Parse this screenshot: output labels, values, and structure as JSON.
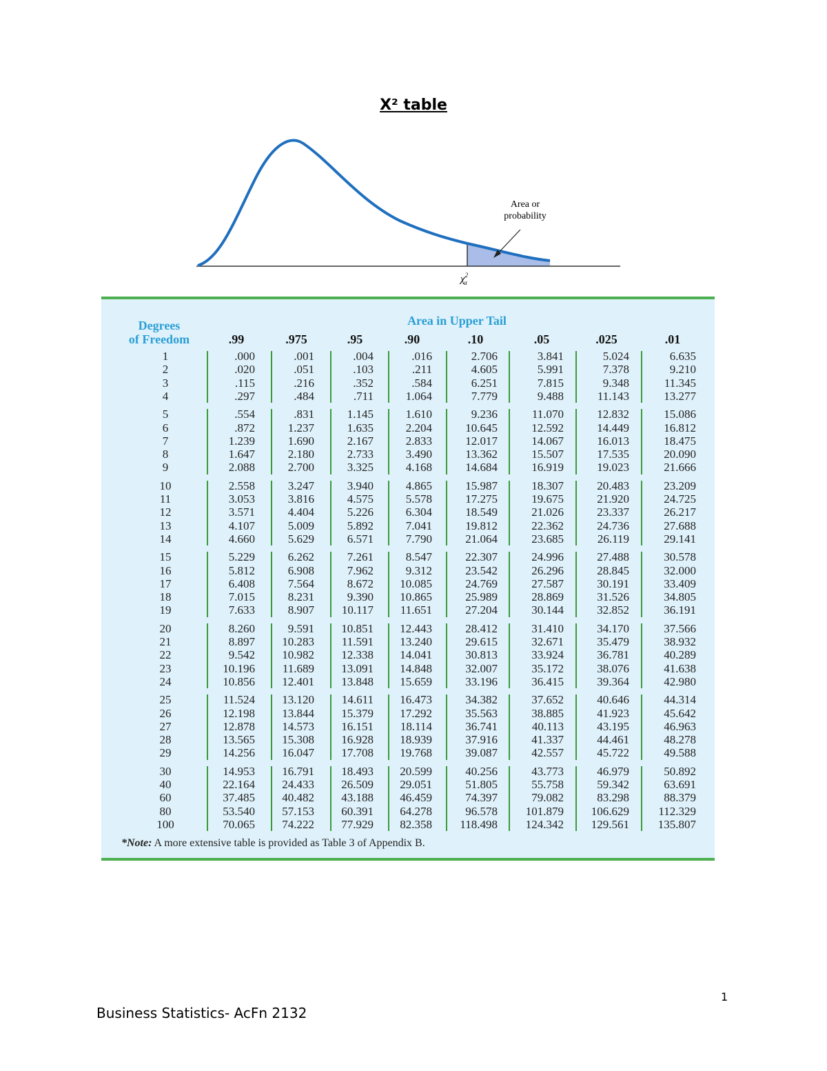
{
  "title": "X² table",
  "figure": {
    "area_label": [
      "Area or",
      "probability"
    ],
    "x_label": {
      "symbol": "χ",
      "sup": "2",
      "sub": "α"
    }
  },
  "table": {
    "header_left": [
      "Degrees",
      "of Freedom"
    ],
    "header_top": "Area in Upper Tail",
    "columns": [
      ".99",
      ".975",
      ".95",
      ".90",
      ".10",
      ".05",
      ".025",
      ".01"
    ],
    "groups": [
      [
        [
          "1",
          ".000",
          ".001",
          ".004",
          ".016",
          "2.706",
          "3.841",
          "5.024",
          "6.635"
        ],
        [
          "2",
          ".020",
          ".051",
          ".103",
          ".211",
          "4.605",
          "5.991",
          "7.378",
          "9.210"
        ],
        [
          "3",
          ".115",
          ".216",
          ".352",
          ".584",
          "6.251",
          "7.815",
          "9.348",
          "11.345"
        ],
        [
          "4",
          ".297",
          ".484",
          ".711",
          "1.064",
          "7.779",
          "9.488",
          "11.143",
          "13.277"
        ]
      ],
      [
        [
          "5",
          ".554",
          ".831",
          "1.145",
          "1.610",
          "9.236",
          "11.070",
          "12.832",
          "15.086"
        ],
        [
          "6",
          ".872",
          "1.237",
          "1.635",
          "2.204",
          "10.645",
          "12.592",
          "14.449",
          "16.812"
        ],
        [
          "7",
          "1.239",
          "1.690",
          "2.167",
          "2.833",
          "12.017",
          "14.067",
          "16.013",
          "18.475"
        ],
        [
          "8",
          "1.647",
          "2.180",
          "2.733",
          "3.490",
          "13.362",
          "15.507",
          "17.535",
          "20.090"
        ],
        [
          "9",
          "2.088",
          "2.700",
          "3.325",
          "4.168",
          "14.684",
          "16.919",
          "19.023",
          "21.666"
        ]
      ],
      [
        [
          "10",
          "2.558",
          "3.247",
          "3.940",
          "4.865",
          "15.987",
          "18.307",
          "20.483",
          "23.209"
        ],
        [
          "11",
          "3.053",
          "3.816",
          "4.575",
          "5.578",
          "17.275",
          "19.675",
          "21.920",
          "24.725"
        ],
        [
          "12",
          "3.571",
          "4.404",
          "5.226",
          "6.304",
          "18.549",
          "21.026",
          "23.337",
          "26.217"
        ],
        [
          "13",
          "4.107",
          "5.009",
          "5.892",
          "7.041",
          "19.812",
          "22.362",
          "24.736",
          "27.688"
        ],
        [
          "14",
          "4.660",
          "5.629",
          "6.571",
          "7.790",
          "21.064",
          "23.685",
          "26.119",
          "29.141"
        ]
      ],
      [
        [
          "15",
          "5.229",
          "6.262",
          "7.261",
          "8.547",
          "22.307",
          "24.996",
          "27.488",
          "30.578"
        ],
        [
          "16",
          "5.812",
          "6.908",
          "7.962",
          "9.312",
          "23.542",
          "26.296",
          "28.845",
          "32.000"
        ],
        [
          "17",
          "6.408",
          "7.564",
          "8.672",
          "10.085",
          "24.769",
          "27.587",
          "30.191",
          "33.409"
        ],
        [
          "18",
          "7.015",
          "8.231",
          "9.390",
          "10.865",
          "25.989",
          "28.869",
          "31.526",
          "34.805"
        ],
        [
          "19",
          "7.633",
          "8.907",
          "10.117",
          "11.651",
          "27.204",
          "30.144",
          "32.852",
          "36.191"
        ]
      ],
      [
        [
          "20",
          "8.260",
          "9.591",
          "10.851",
          "12.443",
          "28.412",
          "31.410",
          "34.170",
          "37.566"
        ],
        [
          "21",
          "8.897",
          "10.283",
          "11.591",
          "13.240",
          "29.615",
          "32.671",
          "35.479",
          "38.932"
        ],
        [
          "22",
          "9.542",
          "10.982",
          "12.338",
          "14.041",
          "30.813",
          "33.924",
          "36.781",
          "40.289"
        ],
        [
          "23",
          "10.196",
          "11.689",
          "13.091",
          "14.848",
          "32.007",
          "35.172",
          "38.076",
          "41.638"
        ],
        [
          "24",
          "10.856",
          "12.401",
          "13.848",
          "15.659",
          "33.196",
          "36.415",
          "39.364",
          "42.980"
        ]
      ],
      [
        [
          "25",
          "11.524",
          "13.120",
          "14.611",
          "16.473",
          "34.382",
          "37.652",
          "40.646",
          "44.314"
        ],
        [
          "26",
          "12.198",
          "13.844",
          "15.379",
          "17.292",
          "35.563",
          "38.885",
          "41.923",
          "45.642"
        ],
        [
          "27",
          "12.878",
          "14.573",
          "16.151",
          "18.114",
          "36.741",
          "40.113",
          "43.195",
          "46.963"
        ],
        [
          "28",
          "13.565",
          "15.308",
          "16.928",
          "18.939",
          "37.916",
          "41.337",
          "44.461",
          "48.278"
        ],
        [
          "29",
          "14.256",
          "16.047",
          "17.708",
          "19.768",
          "39.087",
          "42.557",
          "45.722",
          "49.588"
        ]
      ],
      [
        [
          "30",
          "14.953",
          "16.791",
          "18.493",
          "20.599",
          "40.256",
          "43.773",
          "46.979",
          "50.892"
        ],
        [
          "40",
          "22.164",
          "24.433",
          "26.509",
          "29.051",
          "51.805",
          "55.758",
          "59.342",
          "63.691"
        ],
        [
          "60",
          "37.485",
          "40.482",
          "43.188",
          "46.459",
          "74.397",
          "79.082",
          "83.298",
          "88.379"
        ],
        [
          "80",
          "53.540",
          "57.153",
          "60.391",
          "64.278",
          "96.578",
          "101.879",
          "106.629",
          "112.329"
        ],
        [
          "100",
          "70.065",
          "74.222",
          "77.929",
          "82.358",
          "118.498",
          "124.342",
          "129.561",
          "135.807"
        ]
      ]
    ],
    "note_label": "*Note:",
    "note": " A more extensive table is provided as Table 3 of Appendix B."
  },
  "page_number": "1",
  "footer": "Business Statistics- AcFn 2132"
}
